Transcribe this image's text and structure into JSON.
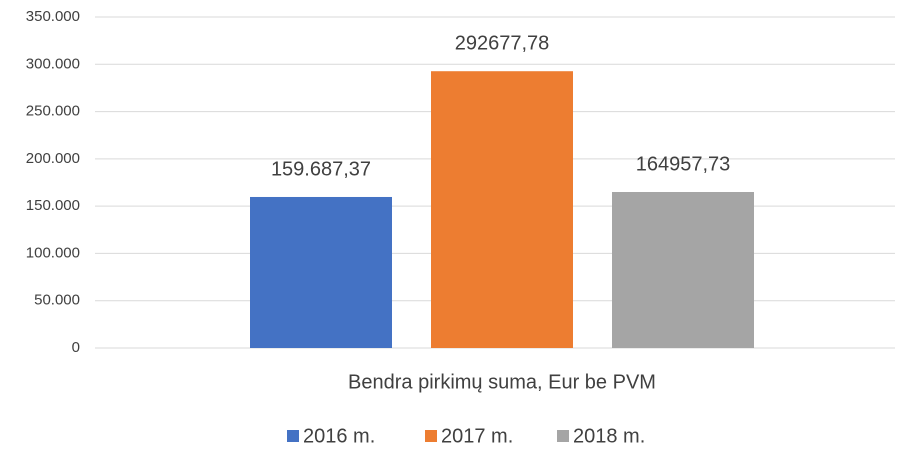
{
  "chart_data": {
    "type": "bar",
    "categories": [
      "Bendra pirkimų suma, Eur be PVM"
    ],
    "series": [
      {
        "name": "2016 m.",
        "color": "#4472c4",
        "values": [
          159687.37
        ],
        "value_labels": [
          "159.687,37"
        ]
      },
      {
        "name": "2017 m.",
        "color": "#ed7d31",
        "values": [
          292677.78
        ],
        "value_labels": [
          "292677,78"
        ]
      },
      {
        "name": "2018 m.",
        "color": "#a5a5a5",
        "values": [
          164957.73
        ],
        "value_labels": [
          "164957,73"
        ]
      }
    ],
    "ylim": [
      0,
      350000
    ],
    "yticks": [
      0,
      {
        "value": 50000,
        "label": "50.000"
      },
      {
        "value": 100000,
        "label": "100.000"
      },
      {
        "value": 150000,
        "label": "150.000"
      },
      {
        "value": 200000,
        "label": "200.000"
      },
      {
        "value": 250000,
        "label": "250.000"
      },
      {
        "value": 300000,
        "label": "300.000"
      },
      {
        "value": 350000,
        "label": "350.000"
      }
    ],
    "grid": true,
    "legend": "bottom"
  }
}
